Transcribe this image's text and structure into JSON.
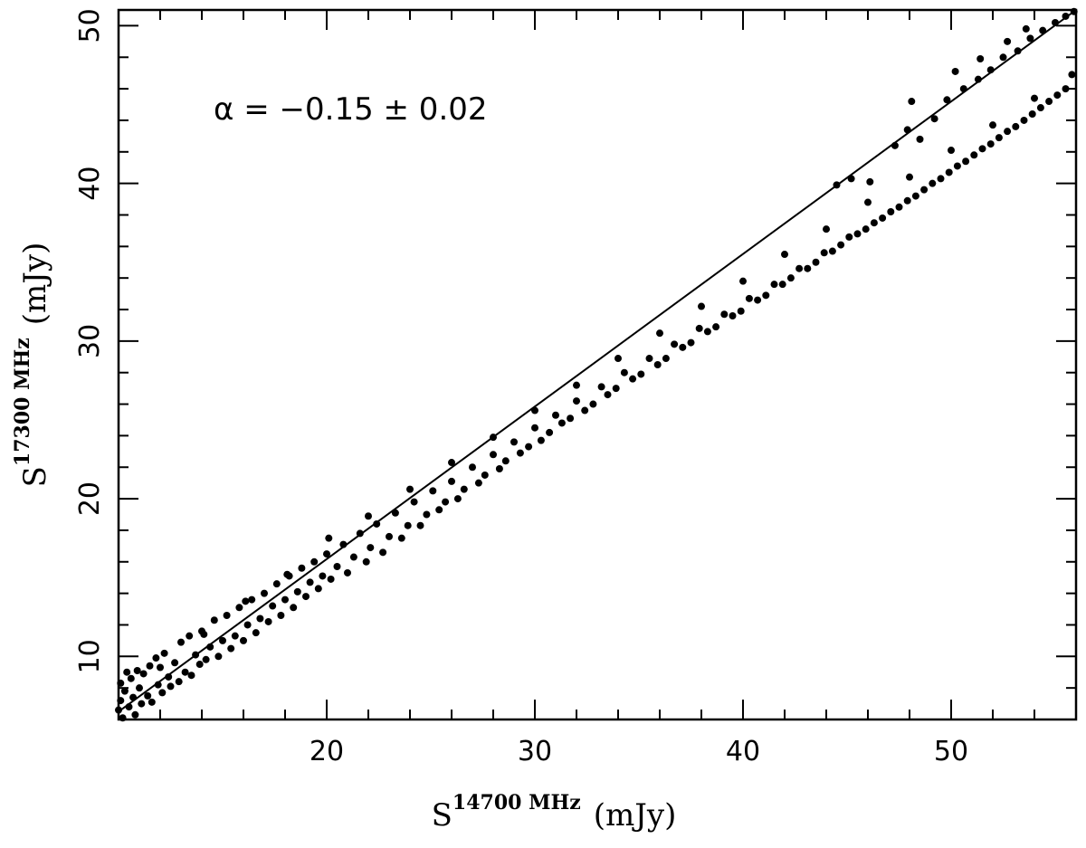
{
  "chart_data": {
    "type": "scatter",
    "title": "",
    "xlabel": {
      "base": "S",
      "superscript": "14700 MHz",
      "unit": "(mJy)"
    },
    "ylabel": {
      "base": "S",
      "superscript": "17300 MHz",
      "unit": "(mJy)"
    },
    "xlim": [
      10,
      56
    ],
    "ylim": [
      6,
      51
    ],
    "xticks": [
      20,
      30,
      40,
      50
    ],
    "yticks": [
      10,
      20,
      30,
      40,
      50
    ],
    "x_minor_step": 2,
    "y_minor_step": 2,
    "grid": false,
    "annotation": "α = −0.15 ± 0.02",
    "fit_line": {
      "points": [
        [
          10,
          6.5
        ],
        [
          56,
          51
        ]
      ]
    },
    "series": [
      {
        "marker": "filled-circle",
        "points": [
          [
            10.0,
            6.6
          ],
          [
            10.1,
            7.2
          ],
          [
            10.1,
            8.3
          ],
          [
            10.2,
            6.1
          ],
          [
            10.3,
            7.8
          ],
          [
            10.4,
            9.0
          ],
          [
            10.5,
            6.8
          ],
          [
            10.6,
            8.6
          ],
          [
            10.7,
            7.4
          ],
          [
            10.8,
            6.3
          ],
          [
            10.9,
            9.1
          ],
          [
            11.0,
            8.0
          ],
          [
            11.1,
            7.0
          ],
          [
            11.2,
            8.9
          ],
          [
            11.4,
            7.5
          ],
          [
            11.5,
            9.4
          ],
          [
            11.6,
            7.1
          ],
          [
            11.8,
            9.9
          ],
          [
            11.9,
            8.2
          ],
          [
            12.1,
            7.7
          ],
          [
            12.2,
            10.2
          ],
          [
            12.4,
            8.7
          ],
          [
            12.5,
            8.1
          ],
          [
            12.7,
            9.6
          ],
          [
            12.9,
            8.4
          ],
          [
            13.0,
            10.9
          ],
          [
            13.2,
            9.0
          ],
          [
            13.4,
            11.3
          ],
          [
            13.5,
            8.8
          ],
          [
            13.7,
            10.1
          ],
          [
            13.9,
            9.5
          ],
          [
            14.0,
            11.6
          ],
          [
            14.2,
            9.8
          ],
          [
            14.4,
            10.6
          ],
          [
            14.6,
            12.3
          ],
          [
            14.8,
            10.0
          ],
          [
            15.0,
            11.0
          ],
          [
            15.2,
            12.6
          ],
          [
            15.4,
            10.5
          ],
          [
            15.6,
            11.3
          ],
          [
            15.8,
            13.1
          ],
          [
            16.0,
            11.0
          ],
          [
            16.2,
            12.0
          ],
          [
            16.4,
            13.6
          ],
          [
            16.6,
            11.5
          ],
          [
            16.8,
            12.4
          ],
          [
            17.0,
            14.0
          ],
          [
            17.2,
            12.2
          ],
          [
            17.4,
            13.2
          ],
          [
            17.6,
            14.6
          ],
          [
            17.8,
            12.6
          ],
          [
            18.0,
            13.6
          ],
          [
            18.2,
            15.1
          ],
          [
            18.4,
            13.1
          ],
          [
            18.6,
            14.1
          ],
          [
            18.8,
            15.6
          ],
          [
            19.0,
            13.8
          ],
          [
            19.2,
            14.7
          ],
          [
            19.4,
            16.0
          ],
          [
            19.6,
            14.3
          ],
          [
            19.8,
            15.1
          ],
          [
            20.0,
            16.5
          ],
          [
            20.2,
            14.9
          ],
          [
            20.5,
            15.7
          ],
          [
            20.8,
            17.1
          ],
          [
            21.0,
            15.3
          ],
          [
            21.3,
            16.3
          ],
          [
            21.6,
            17.8
          ],
          [
            21.9,
            16.0
          ],
          [
            22.1,
            16.9
          ],
          [
            22.4,
            18.4
          ],
          [
            22.7,
            16.6
          ],
          [
            23.0,
            17.6
          ],
          [
            23.3,
            19.1
          ],
          [
            23.6,
            17.5
          ],
          [
            23.9,
            18.3
          ],
          [
            24.2,
            19.8
          ],
          [
            24.5,
            18.3
          ],
          [
            24.8,
            19.0
          ],
          [
            25.1,
            20.5
          ],
          [
            25.4,
            19.3
          ],
          [
            25.7,
            19.8
          ],
          [
            26.0,
            21.1
          ],
          [
            26.3,
            20.0
          ],
          [
            26.6,
            20.6
          ],
          [
            27.0,
            22.0
          ],
          [
            27.3,
            21.0
          ],
          [
            27.6,
            21.5
          ],
          [
            28.0,
            22.8
          ],
          [
            28.3,
            21.9
          ],
          [
            28.6,
            22.4
          ],
          [
            29.0,
            23.6
          ],
          [
            29.3,
            22.9
          ],
          [
            29.7,
            23.3
          ],
          [
            30.0,
            24.5
          ],
          [
            30.3,
            23.7
          ],
          [
            30.7,
            24.2
          ],
          [
            31.0,
            25.3
          ],
          [
            31.3,
            24.8
          ],
          [
            31.7,
            25.1
          ],
          [
            32.0,
            26.2
          ],
          [
            32.4,
            25.6
          ],
          [
            32.8,
            26.0
          ],
          [
            33.2,
            27.1
          ],
          [
            33.5,
            26.6
          ],
          [
            33.9,
            27.0
          ],
          [
            34.3,
            28.0
          ],
          [
            34.7,
            27.6
          ],
          [
            35.1,
            27.9
          ],
          [
            35.5,
            28.9
          ],
          [
            35.9,
            28.5
          ],
          [
            36.3,
            28.9
          ],
          [
            36.7,
            29.8
          ],
          [
            37.1,
            29.6
          ],
          [
            37.5,
            29.9
          ],
          [
            37.9,
            30.8
          ],
          [
            38.3,
            30.6
          ],
          [
            38.7,
            30.9
          ],
          [
            39.1,
            31.7
          ],
          [
            39.5,
            31.6
          ],
          [
            39.9,
            31.9
          ],
          [
            40.3,
            32.7
          ],
          [
            40.7,
            32.6
          ],
          [
            41.1,
            32.9
          ],
          [
            41.5,
            33.6
          ],
          [
            41.9,
            33.6
          ],
          [
            42.3,
            34.0
          ],
          [
            42.7,
            34.6
          ],
          [
            43.1,
            34.6
          ],
          [
            43.5,
            35.0
          ],
          [
            43.9,
            35.6
          ],
          [
            44.3,
            35.7
          ],
          [
            44.7,
            36.1
          ],
          [
            45.1,
            36.6
          ],
          [
            45.5,
            36.8
          ],
          [
            45.9,
            37.1
          ],
          [
            46.3,
            37.5
          ],
          [
            46.7,
            37.8
          ],
          [
            47.1,
            38.2
          ],
          [
            47.5,
            38.5
          ],
          [
            47.9,
            38.9
          ],
          [
            48.3,
            39.2
          ],
          [
            48.7,
            39.6
          ],
          [
            49.1,
            40.0
          ],
          [
            49.5,
            40.3
          ],
          [
            49.9,
            40.7
          ],
          [
            50.3,
            41.1
          ],
          [
            50.7,
            41.4
          ],
          [
            51.1,
            41.8
          ],
          [
            51.5,
            42.2
          ],
          [
            51.9,
            42.5
          ],
          [
            52.3,
            42.9
          ],
          [
            52.7,
            43.3
          ],
          [
            53.1,
            43.6
          ],
          [
            53.5,
            44.0
          ],
          [
            53.9,
            44.4
          ],
          [
            54.3,
            44.8
          ],
          [
            54.7,
            45.2
          ],
          [
            55.1,
            45.6
          ],
          [
            55.5,
            46.0
          ],
          [
            12.0,
            9.3
          ],
          [
            14.1,
            11.4
          ],
          [
            16.1,
            13.5
          ],
          [
            18.1,
            15.2
          ],
          [
            20.1,
            17.5
          ],
          [
            22.0,
            18.9
          ],
          [
            24.0,
            20.6
          ],
          [
            26.0,
            22.3
          ],
          [
            28.0,
            23.9
          ],
          [
            30.0,
            25.6
          ],
          [
            32.0,
            27.2
          ],
          [
            34.0,
            28.9
          ],
          [
            36.0,
            30.5
          ],
          [
            38.0,
            32.2
          ],
          [
            40.0,
            33.8
          ],
          [
            42.0,
            35.5
          ],
          [
            44.0,
            37.1
          ],
          [
            46.0,
            38.8
          ],
          [
            48.0,
            40.4
          ],
          [
            50.0,
            42.1
          ],
          [
            52.0,
            43.7
          ],
          [
            54.0,
            45.4
          ],
          [
            55.8,
            46.9
          ],
          [
            44.5,
            39.9
          ],
          [
            45.2,
            40.3
          ],
          [
            46.1,
            40.1
          ],
          [
            47.3,
            42.4
          ],
          [
            47.9,
            43.4
          ],
          [
            48.5,
            42.8
          ],
          [
            49.2,
            44.1
          ],
          [
            49.8,
            45.3
          ],
          [
            50.6,
            46.0
          ],
          [
            51.3,
            46.6
          ],
          [
            51.9,
            47.2
          ],
          [
            52.5,
            48.0
          ],
          [
            53.2,
            48.4
          ],
          [
            53.8,
            49.2
          ],
          [
            54.4,
            49.7
          ],
          [
            55.0,
            50.2
          ],
          [
            55.5,
            50.6
          ],
          [
            55.9,
            50.9
          ],
          [
            48.1,
            45.2
          ],
          [
            50.2,
            47.1
          ],
          [
            51.4,
            47.9
          ],
          [
            52.7,
            49.0
          ],
          [
            53.6,
            49.8
          ]
        ]
      }
    ]
  }
}
